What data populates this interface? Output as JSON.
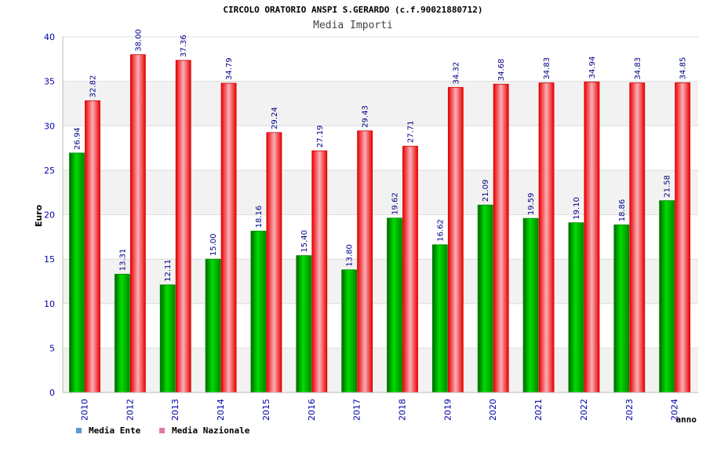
{
  "chart_data": {
    "type": "bar",
    "title": "CIRCOLO ORATORIO ANSPI S.GERARDO (c.f.90021880712)",
    "subtitle": "Media Importi",
    "xlabel": "anno",
    "ylabel": "Euro",
    "ylim": [
      0,
      40
    ],
    "yticks": [
      0,
      5,
      10,
      15,
      20,
      25,
      30,
      35,
      40
    ],
    "grid": true,
    "categories": [
      "2010",
      "2012",
      "2013",
      "2014",
      "2015",
      "2016",
      "2017",
      "2018",
      "2019",
      "2020",
      "2021",
      "2022",
      "2023",
      "2024"
    ],
    "series": [
      {
        "name": "Media Ente",
        "color": "#00cc00",
        "legend_color": "#5b9bd5",
        "values": [
          26.94,
          13.31,
          12.11,
          15.0,
          18.16,
          15.4,
          13.8,
          19.62,
          16.62,
          21.09,
          19.59,
          19.1,
          18.86,
          21.58
        ],
        "labels": [
          "26.94",
          "13.31",
          "12.11",
          "15.00",
          "18.16",
          "15.40",
          "13.80",
          "19.62",
          "16.62",
          "21.09",
          "19.59",
          "19.10",
          "18.86",
          "21.58"
        ]
      },
      {
        "name": "Media Nazionale",
        "color": "#ee0000",
        "legend_color": "#e07aa8",
        "values": [
          32.82,
          38.0,
          37.36,
          34.79,
          29.24,
          27.19,
          29.43,
          27.71,
          34.32,
          34.68,
          34.83,
          34.94,
          34.83,
          34.85
        ],
        "labels": [
          "32.82",
          "38.00",
          "37.36",
          "34.79",
          "29.24",
          "27.19",
          "29.43",
          "27.71",
          "34.32",
          "34.68",
          "34.83",
          "34.94",
          "34.83",
          "34.85"
        ]
      }
    ],
    "legend_position": "bottom-left"
  }
}
